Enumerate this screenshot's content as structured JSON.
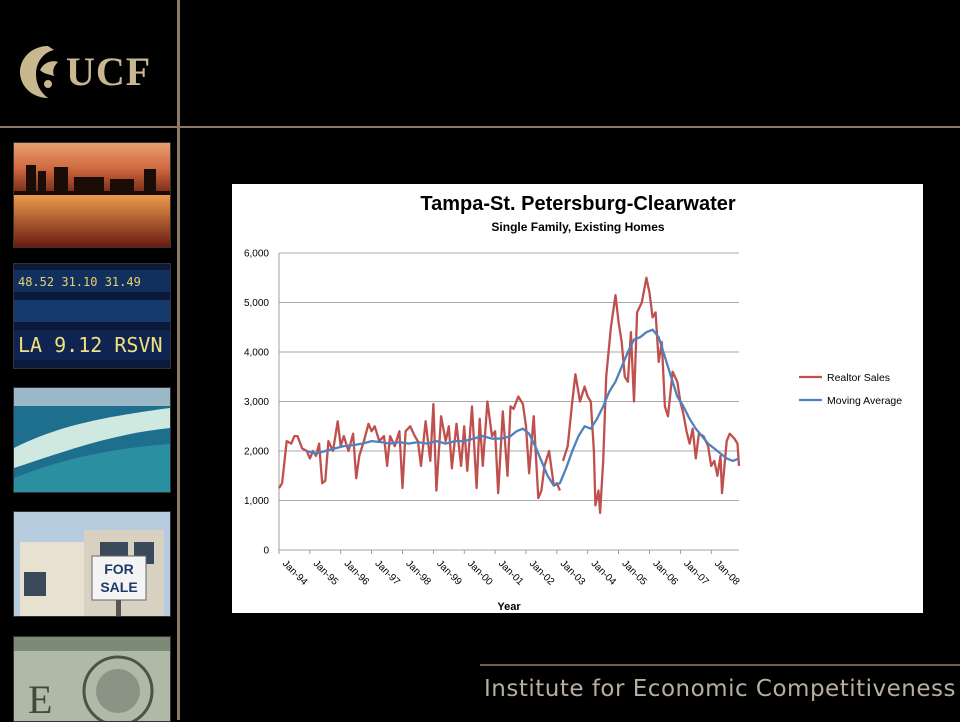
{
  "brand": {
    "logo_text": "UCF"
  },
  "footer": {
    "institute": "Institute for Economic Competitiveness"
  },
  "colors": {
    "background": "#000000",
    "frame_line": "#8a7a66",
    "sales": "#c0504d",
    "average": "#4f81bd",
    "logo": "#c9b88f"
  },
  "side_photos": [
    {
      "icon": "city-skyline-sunset-photo"
    },
    {
      "icon": "stock-ticker-photo"
    },
    {
      "icon": "aerial-beach-photo"
    },
    {
      "icon": "house-for-sale-photo",
      "sign_text": "FOR SALE"
    },
    {
      "icon": "dollar-bill-photo"
    }
  ],
  "chart_data": {
    "type": "line",
    "title": "Tampa-St. Petersburg-Clearwater",
    "subtitle": "Single Family, Existing Homes",
    "xlabel": "Year",
    "ylabel": "",
    "ylim": [
      0,
      6000
    ],
    "yticks": [
      "0",
      "1,000",
      "2,000",
      "3,000",
      "4,000",
      "5,000",
      "6,000"
    ],
    "yvalues": [
      0,
      1000,
      2000,
      3000,
      4000,
      5000,
      6000
    ],
    "xlim": [
      1994.0,
      2008.9
    ],
    "xticks": [
      "Jan-94",
      "Jan-95",
      "Jan-96",
      "Jan-97",
      "Jan-98",
      "Jan-99",
      "Jan-00",
      "Jan-01",
      "Jan-02",
      "Jan-03",
      "Jan-04",
      "Jan-05",
      "Jan-06",
      "Jan-07",
      "Jan-08"
    ],
    "grid": "horizontal",
    "legend_position": "right",
    "series": [
      {
        "name": "Realtor Sales",
        "color": "#c0504d",
        "points": [
          [
            1994.0,
            1250
          ],
          [
            1994.1,
            1350
          ],
          [
            1994.25,
            2200
          ],
          [
            1994.4,
            2150
          ],
          [
            1994.5,
            2300
          ],
          [
            1994.6,
            2300
          ],
          [
            1994.75,
            2050
          ],
          [
            1994.9,
            2000
          ],
          [
            1995.0,
            1850
          ],
          [
            1995.1,
            2000
          ],
          [
            1995.2,
            1900
          ],
          [
            1995.3,
            2150
          ],
          [
            1995.4,
            1350
          ],
          [
            1995.5,
            1400
          ],
          [
            1995.6,
            2200
          ],
          [
            1995.75,
            2000
          ],
          [
            1995.9,
            2600
          ],
          [
            1996.0,
            2100
          ],
          [
            1996.1,
            2300
          ],
          [
            1996.25,
            2000
          ],
          [
            1996.4,
            2350
          ],
          [
            1996.5,
            1450
          ],
          [
            1996.6,
            1900
          ],
          [
            1996.75,
            2200
          ],
          [
            1996.9,
            2550
          ],
          [
            1997.0,
            2400
          ],
          [
            1997.1,
            2500
          ],
          [
            1997.25,
            2200
          ],
          [
            1997.4,
            2300
          ],
          [
            1997.5,
            1700
          ],
          [
            1997.6,
            2300
          ],
          [
            1997.75,
            2100
          ],
          [
            1997.9,
            2400
          ],
          [
            1998.0,
            1250
          ],
          [
            1998.1,
            2400
          ],
          [
            1998.25,
            2500
          ],
          [
            1998.4,
            2300
          ],
          [
            1998.5,
            2200
          ],
          [
            1998.6,
            1700
          ],
          [
            1998.75,
            2600
          ],
          [
            1998.9,
            1800
          ],
          [
            1999.0,
            2950
          ],
          [
            1999.1,
            1200
          ],
          [
            1999.25,
            2700
          ],
          [
            1999.4,
            2200
          ],
          [
            1999.5,
            2500
          ],
          [
            1999.6,
            1650
          ],
          [
            1999.75,
            2550
          ],
          [
            1999.9,
            1700
          ],
          [
            2000.0,
            2500
          ],
          [
            2000.1,
            1600
          ],
          [
            2000.25,
            2900
          ],
          [
            2000.4,
            1250
          ],
          [
            2000.5,
            2650
          ],
          [
            2000.6,
            1700
          ],
          [
            2000.75,
            3000
          ],
          [
            2000.9,
            2300
          ],
          [
            2001.0,
            2400
          ],
          [
            2001.1,
            1150
          ],
          [
            2001.25,
            2800
          ],
          [
            2001.4,
            1500
          ],
          [
            2001.5,
            2900
          ],
          [
            2001.6,
            2850
          ],
          [
            2001.75,
            3100
          ],
          [
            2001.9,
            2950
          ],
          [
            2002.0,
            2500
          ],
          [
            2002.1,
            1550
          ],
          [
            2002.25,
            2700
          ],
          [
            2002.4,
            1050
          ],
          [
            2002.5,
            1200
          ],
          [
            2002.6,
            1700
          ],
          [
            2002.75,
            2000
          ],
          [
            2002.9,
            1300
          ],
          [
            2003.0,
            1350
          ],
          [
            2003.1,
            1200
          ],
          [
            null,
            null
          ],
          [
            2003.2,
            1800
          ],
          [
            2003.35,
            2100
          ],
          [
            2003.5,
            3000
          ],
          [
            2003.6,
            3550
          ],
          [
            2003.75,
            3000
          ],
          [
            2003.9,
            3300
          ],
          [
            2004.0,
            3100
          ],
          [
            2004.1,
            3000
          ],
          [
            2004.2,
            2000
          ],
          [
            2004.25,
            900
          ],
          [
            2004.35,
            1200
          ],
          [
            2004.4,
            750
          ],
          [
            2004.5,
            1800
          ],
          [
            2004.6,
            3500
          ],
          [
            2004.75,
            4500
          ],
          [
            2004.9,
            5150
          ],
          [
            2005.0,
            4600
          ],
          [
            2005.1,
            4200
          ],
          [
            2005.2,
            3500
          ],
          [
            2005.3,
            3400
          ],
          [
            2005.4,
            4400
          ],
          [
            2005.5,
            3000
          ],
          [
            2005.6,
            4800
          ],
          [
            2005.75,
            5000
          ],
          [
            2005.9,
            5500
          ],
          [
            2006.0,
            5200
          ],
          [
            2006.1,
            4700
          ],
          [
            2006.2,
            4800
          ],
          [
            2006.3,
            3800
          ],
          [
            2006.4,
            4200
          ],
          [
            2006.5,
            2900
          ],
          [
            2006.6,
            2700
          ],
          [
            2006.75,
            3600
          ],
          [
            2006.9,
            3400
          ],
          [
            2007.0,
            3000
          ],
          [
            2007.1,
            2750
          ],
          [
            2007.2,
            2400
          ],
          [
            2007.3,
            2150
          ],
          [
            2007.4,
            2450
          ],
          [
            2007.5,
            1850
          ],
          [
            2007.6,
            2350
          ],
          [
            2007.75,
            2300
          ],
          [
            2007.9,
            2100
          ],
          [
            2008.0,
            1700
          ],
          [
            2008.1,
            1800
          ],
          [
            2008.2,
            1500
          ],
          [
            2008.3,
            1900
          ],
          [
            2008.35,
            1150
          ],
          [
            2008.5,
            2200
          ],
          [
            2008.6,
            2350
          ],
          [
            2008.75,
            2250
          ],
          [
            2008.85,
            2150
          ],
          [
            2008.9,
            1700
          ]
        ]
      },
      {
        "name": "Moving Average",
        "color": "#4f81bd",
        "points": [
          [
            1994.9,
            2000
          ],
          [
            1995.2,
            1950
          ],
          [
            1995.5,
            2000
          ],
          [
            1995.8,
            2050
          ],
          [
            1996.1,
            2100
          ],
          [
            1996.4,
            2120
          ],
          [
            1996.7,
            2150
          ],
          [
            1997.0,
            2200
          ],
          [
            1997.3,
            2180
          ],
          [
            1997.6,
            2150
          ],
          [
            1997.9,
            2180
          ],
          [
            1998.2,
            2150
          ],
          [
            1998.5,
            2180
          ],
          [
            1998.8,
            2150
          ],
          [
            1999.1,
            2200
          ],
          [
            1999.4,
            2150
          ],
          [
            1999.7,
            2200
          ],
          [
            2000.0,
            2200
          ],
          [
            2000.3,
            2250
          ],
          [
            2000.6,
            2300
          ],
          [
            2000.9,
            2250
          ],
          [
            2001.2,
            2250
          ],
          [
            2001.5,
            2300
          ],
          [
            2001.7,
            2400
          ],
          [
            2001.9,
            2450
          ],
          [
            2002.1,
            2350
          ],
          [
            2002.3,
            2100
          ],
          [
            2002.5,
            1800
          ],
          [
            2002.7,
            1500
          ],
          [
            2002.9,
            1300
          ],
          [
            2003.1,
            1350
          ],
          [
            2003.3,
            1650
          ],
          [
            2003.5,
            2000
          ],
          [
            2003.7,
            2300
          ],
          [
            2003.9,
            2500
          ],
          [
            2004.1,
            2450
          ],
          [
            2004.3,
            2650
          ],
          [
            2004.5,
            2900
          ],
          [
            2004.7,
            3200
          ],
          [
            2004.9,
            3400
          ],
          [
            2005.1,
            3700
          ],
          [
            2005.3,
            4000
          ],
          [
            2005.5,
            4250
          ],
          [
            2005.7,
            4300
          ],
          [
            2005.9,
            4400
          ],
          [
            2006.1,
            4450
          ],
          [
            2006.3,
            4300
          ],
          [
            2006.5,
            3900
          ],
          [
            2006.7,
            3500
          ],
          [
            2006.9,
            3100
          ],
          [
            2007.1,
            2900
          ],
          [
            2007.3,
            2650
          ],
          [
            2007.5,
            2450
          ],
          [
            2007.7,
            2300
          ],
          [
            2007.9,
            2150
          ],
          [
            2008.1,
            2050
          ],
          [
            2008.3,
            1950
          ],
          [
            2008.5,
            1850
          ],
          [
            2008.7,
            1800
          ],
          [
            2008.9,
            1850
          ]
        ]
      }
    ]
  }
}
